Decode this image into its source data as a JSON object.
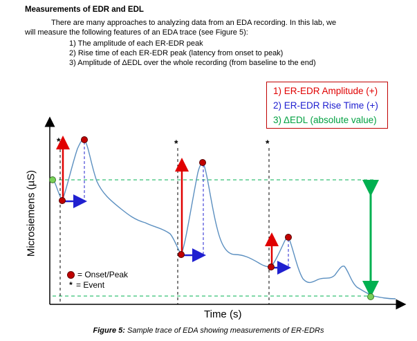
{
  "heading": "Measurements of EDR and EDL",
  "intro_line1": "There are many approaches to analyzing data from an EDA recording. In this lab, we",
  "intro_line2": "will measure the following features of an EDA trace (see Figure 5):",
  "list": [
    "1) The amplitude of each ER-EDR peak",
    "2) Rise time of each ER-EDR peak (latency from onset to peak)",
    "3) Amplitude of ΔEDL over the whole recording (from baseline to the end)"
  ],
  "figure": {
    "legend": [
      {
        "text": "1) ER-EDR Amplitude (+)",
        "color": "#e00000"
      },
      {
        "text": "2) ER-EDR Rise Time (+)",
        "color": "#2020d0"
      },
      {
        "text": "3) ΔEDL (absolute value)",
        "color": "#00a040"
      }
    ],
    "y_axis_label": "Microsiemens (µS)",
    "x_axis_label": "Time (s)",
    "event_marker": "*",
    "inner_legend": {
      "onset_peak": "= Onset/Peak",
      "event": "= Event"
    },
    "colors": {
      "trace": "#5b8fc0",
      "onset_peak": "#c00000",
      "amplitude_arrow": "#e00000",
      "rise_arrow": "#2020d0",
      "edl": "#00b050"
    }
  },
  "caption": {
    "label": "Figure 5:",
    "text": " Sample trace of EDA showing measurements of ER-EDRs"
  }
}
